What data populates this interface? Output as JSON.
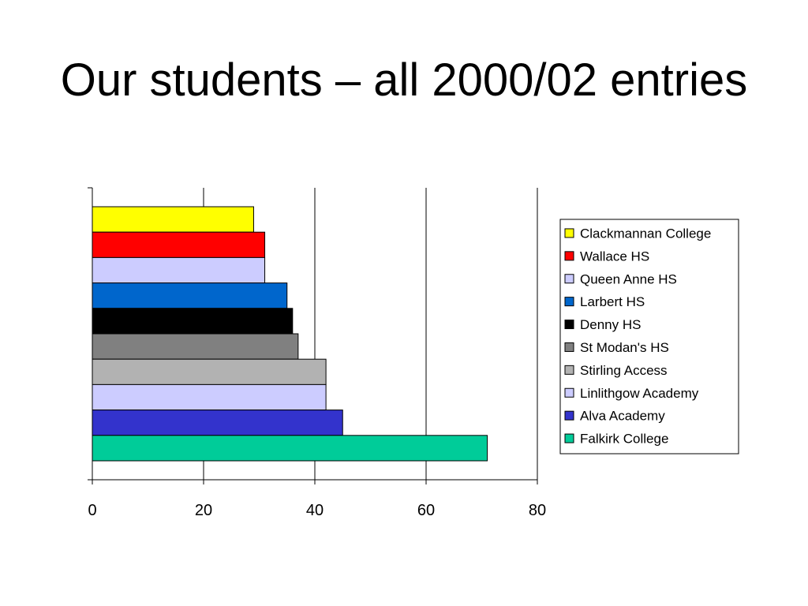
{
  "slide": {
    "title": "Our students – all 2000/02 entries"
  },
  "chart_data": {
    "type": "bar",
    "orientation": "horizontal",
    "title": "",
    "xlabel": "",
    "ylabel": "",
    "xlim": [
      0,
      80
    ],
    "x_ticks": [
      0,
      20,
      40,
      60,
      80
    ],
    "grid": "vertical lines at major ticks",
    "legend_position": "right",
    "categories": [
      "Clackmannan College",
      "Wallace HS",
      "Queen Anne HS",
      "Larbert HS",
      "Denny HS",
      "St Modan's HS",
      "Stirling Access",
      "Linlithgow Academy",
      "Alva Academy",
      "Falkirk College"
    ],
    "values": [
      29,
      31,
      31,
      35,
      36,
      37,
      42,
      42,
      45,
      71
    ],
    "colors": [
      "#FFFF00",
      "#FF0000",
      "#CCCCFF",
      "#0066CC",
      "#000000",
      "#808080",
      "#B2B2B2",
      "#CCCCFF",
      "#3333CC",
      "#00CC99"
    ]
  }
}
